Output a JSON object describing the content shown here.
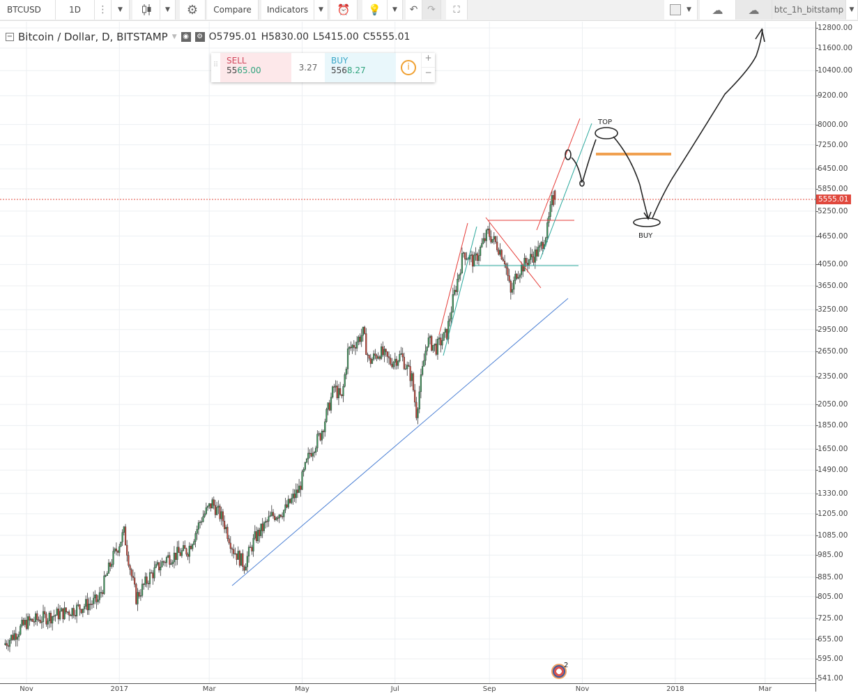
{
  "toolbar": {
    "symbol": "BTCUSD",
    "interval": "1D",
    "compare": "Compare",
    "indicators": "Indicators",
    "layout_name": "btc_1h_bitstamp",
    "icons": [
      "more-icon",
      "candles-icon",
      "gear-icon",
      "alarm-icon",
      "bulb-icon",
      "undo-icon",
      "redo-icon",
      "fullscreen-icon",
      "square-icon",
      "cloud-download-icon",
      "cloud-upload-icon"
    ]
  },
  "legend": {
    "title": "Bitcoin / Dollar, D, BITSTAMP",
    "open_label": "O",
    "open": "5795.01",
    "high_label": "H",
    "high": "5830.00",
    "low_label": "L",
    "low": "5415.00",
    "close_label": "C",
    "close": "5555.01"
  },
  "trade": {
    "sell_label": "SELL",
    "sell_price_a": "55",
    "sell_price_b": "65.00",
    "spread": "3.27",
    "buy_label": "BUY",
    "buy_price_a": "556",
    "buy_price_b": "8.27",
    "plus": "+",
    "minus": "−"
  },
  "annotations": {
    "top": "TOP",
    "buy": "BUY"
  },
  "event_badge": "2",
  "colors": {
    "up": "#3d9a5c",
    "down": "#c8473a",
    "last_price": "#e0483d",
    "trend_blue": "#4a7fd4",
    "trend_red": "#e53935",
    "trend_teal": "#26a69a",
    "target": "#f0a050"
  },
  "chart_data": {
    "type": "candlestick",
    "scale": "log",
    "grid": true,
    "ylim": [
      541,
      12800
    ],
    "y_ticks": [
      "12800.00",
      "11600.00",
      "10400.00",
      "9200.00",
      "8000.00",
      "7250.00",
      "6450.00",
      "5850.00",
      "5250.00",
      "4650.00",
      "4050.00",
      "3650.00",
      "3250.00",
      "2950.00",
      "2650.00",
      "2350.00",
      "2050.00",
      "1850.00",
      "1650.00",
      "1490.00",
      "1330.00",
      "1205.00",
      "1085.00",
      "985.00",
      "885.00",
      "805.00",
      "725.00",
      "655.00",
      "595.00",
      "541.00"
    ],
    "x_ticks": [
      {
        "label": "Nov",
        "date": "2016-11-01"
      },
      {
        "label": "2017",
        "date": "2017-01-01"
      },
      {
        "label": "Mar",
        "date": "2017-03-01"
      },
      {
        "label": "May",
        "date": "2017-05-01"
      },
      {
        "label": "Jul",
        "date": "2017-07-01"
      },
      {
        "label": "Sep",
        "date": "2017-09-01"
      },
      {
        "label": "Nov",
        "date": "2017-11-01"
      },
      {
        "label": "2018",
        "date": "2018-01-01"
      },
      {
        "label": "Mar",
        "date": "2018-03-01"
      }
    ],
    "last_price": "5555.01",
    "last_candle": {
      "open": 5795.01,
      "high": 5830.0,
      "low": 5415.0,
      "close": 5555.01
    },
    "closes": [
      [
        "2016-10-17",
        637
      ],
      [
        "2016-11-01",
        710
      ],
      [
        "2016-11-29",
        750
      ],
      [
        "2016-12-18",
        790
      ],
      [
        "2016-12-27",
        960
      ],
      [
        "2017-01-04",
        1100
      ],
      [
        "2017-01-09",
        890
      ],
      [
        "2017-01-12",
        800
      ],
      [
        "2017-01-21",
        890
      ],
      [
        "2017-02-01",
        970
      ],
      [
        "2017-02-15",
        1010
      ],
      [
        "2017-02-24",
        1180
      ],
      [
        "2017-03-03",
        1270
      ],
      [
        "2017-03-10",
        1170
      ],
      [
        "2017-03-17",
        1010
      ],
      [
        "2017-03-24",
        940
      ],
      [
        "2017-03-31",
        1070
      ],
      [
        "2017-04-11",
        1190
      ],
      [
        "2017-04-20",
        1230
      ],
      [
        "2017-04-29",
        1360
      ],
      [
        "2017-05-06",
        1620
      ],
      [
        "2017-05-13",
        1770
      ],
      [
        "2017-05-18",
        2000
      ],
      [
        "2017-05-22",
        2230
      ],
      [
        "2017-05-27",
        2100
      ],
      [
        "2017-05-31",
        2650
      ],
      [
        "2017-06-10",
        2900
      ],
      [
        "2017-06-14",
        2520
      ],
      [
        "2017-06-21",
        2650
      ],
      [
        "2017-06-28",
        2520
      ],
      [
        "2017-07-05",
        2600
      ],
      [
        "2017-07-12",
        2330
      ],
      [
        "2017-07-15",
        1970
      ],
      [
        "2017-07-18",
        2300
      ],
      [
        "2017-07-22",
        2800
      ],
      [
        "2017-07-28",
        2700
      ],
      [
        "2017-08-04",
        2900
      ],
      [
        "2017-08-08",
        3400
      ],
      [
        "2017-08-15",
        4300
      ],
      [
        "2017-08-22",
        4100
      ],
      [
        "2017-08-31",
        4730
      ],
      [
        "2017-09-07",
        4400
      ],
      [
        "2017-09-11",
        4150
      ],
      [
        "2017-09-15",
        3500
      ],
      [
        "2017-09-19",
        3900
      ],
      [
        "2017-09-27",
        4150
      ],
      [
        "2017-10-04",
        4350
      ],
      [
        "2017-10-09",
        4800
      ],
      [
        "2017-10-12",
        5500
      ],
      [
        "2017-10-14",
        5555.01
      ]
    ]
  }
}
